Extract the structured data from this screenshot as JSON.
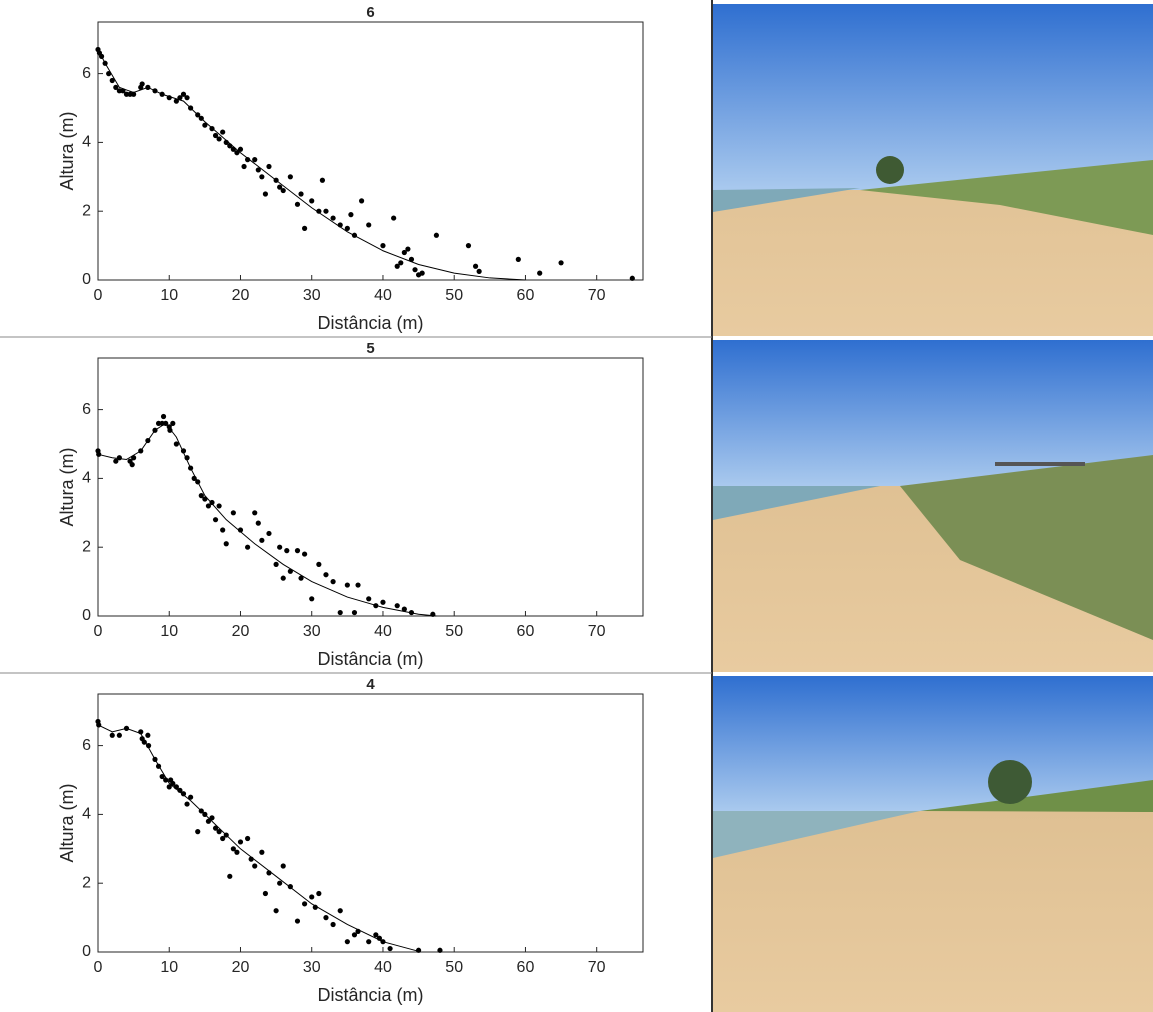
{
  "chart_data": [
    {
      "type": "scatter",
      "title": "6",
      "xlabel": "Distância (m)",
      "ylabel": "Altura (m)",
      "color": "#000000",
      "xlim": [
        0,
        76.5
      ],
      "ylim": [
        0,
        7.5
      ],
      "xticks": [
        0,
        10,
        20,
        30,
        40,
        50,
        60,
        70
      ],
      "yticks": [
        0,
        2,
        4,
        6
      ],
      "points": {
        "x": [
          0,
          0.2,
          0.5,
          1,
          1.5,
          2,
          2.5,
          3,
          3.5,
          4,
          4.5,
          5,
          6,
          6.2,
          7,
          8,
          9,
          10,
          11,
          11.5,
          12,
          12.5,
          13,
          14,
          14.5,
          15,
          16,
          16.5,
          17,
          17.5,
          18,
          18.5,
          19,
          19.5,
          20,
          20.5,
          21,
          22,
          22.5,
          23,
          23.5,
          24,
          25,
          25.5,
          26,
          27,
          28,
          28.5,
          29,
          30,
          31,
          31.5,
          32,
          33,
          34,
          35,
          35.5,
          36,
          37,
          38,
          40,
          41.5,
          42,
          42.5,
          43,
          43.5,
          44,
          44.5,
          45,
          45.5,
          47.5,
          52,
          53,
          53.5,
          59,
          62,
          65,
          75
        ],
        "y": [
          6.7,
          6.6,
          6.5,
          6.3,
          6.0,
          5.8,
          5.6,
          5.5,
          5.5,
          5.4,
          5.4,
          5.4,
          5.6,
          5.7,
          5.6,
          5.5,
          5.4,
          5.3,
          5.2,
          5.3,
          5.4,
          5.3,
          5.0,
          4.8,
          4.7,
          4.5,
          4.4,
          4.2,
          4.1,
          4.3,
          4.0,
          3.9,
          3.8,
          3.7,
          3.8,
          3.3,
          3.5,
          3.5,
          3.2,
          3.0,
          2.5,
          3.3,
          2.9,
          2.7,
          2.6,
          3.0,
          2.2,
          2.5,
          1.5,
          2.3,
          2.0,
          2.9,
          2.0,
          1.8,
          1.6,
          1.5,
          1.9,
          1.3,
          2.3,
          1.6,
          1.0,
          1.8,
          0.4,
          0.5,
          0.8,
          0.9,
          0.6,
          0.3,
          0.15,
          0.2,
          1.3,
          1.0,
          0.4,
          0.25,
          0.6,
          0.2,
          0.5,
          0.05
        ]
      },
      "curve": {
        "x": [
          0,
          1,
          3,
          5,
          7,
          9,
          12,
          15,
          20,
          25,
          30,
          35,
          40,
          45,
          50,
          55,
          60
        ],
        "y": [
          6.7,
          6.3,
          5.6,
          5.45,
          5.6,
          5.4,
          5.2,
          4.6,
          3.7,
          2.9,
          2.1,
          1.4,
          0.85,
          0.45,
          0.2,
          0.06,
          0
        ]
      }
    },
    {
      "type": "scatter",
      "title": "5",
      "xlabel": "Distância (m)",
      "ylabel": "Altura (m)",
      "color": "#000000",
      "xlim": [
        0,
        76.5
      ],
      "ylim": [
        0,
        7.5
      ],
      "xticks": [
        0,
        10,
        20,
        30,
        40,
        50,
        60,
        70
      ],
      "yticks": [
        0,
        2,
        4,
        6
      ],
      "points": {
        "x": [
          0,
          0.1,
          2.5,
          3,
          4.5,
          4.8,
          5,
          6,
          7,
          8,
          8.5,
          9,
          9.2,
          9.5,
          10,
          10.1,
          10.5,
          11,
          12,
          12.5,
          13,
          13.5,
          14,
          14.5,
          15,
          15.5,
          16,
          16.5,
          17,
          17.5,
          18,
          19,
          20,
          21,
          22,
          22.5,
          23,
          24,
          25,
          25.5,
          26,
          26.5,
          27,
          28,
          28.5,
          29,
          30,
          31,
          32,
          33,
          34,
          35,
          36,
          36.5,
          38,
          39,
          40,
          42,
          43,
          44,
          47
        ],
        "y": [
          4.8,
          4.7,
          4.5,
          4.6,
          4.5,
          4.4,
          4.6,
          4.8,
          5.1,
          5.4,
          5.6,
          5.6,
          5.8,
          5.6,
          5.5,
          5.4,
          5.6,
          5.0,
          4.8,
          4.6,
          4.3,
          4.0,
          3.9,
          3.5,
          3.4,
          3.2,
          3.3,
          2.8,
          3.2,
          2.5,
          2.1,
          3.0,
          2.5,
          2.0,
          3.0,
          2.7,
          2.2,
          2.4,
          1.5,
          2.0,
          1.1,
          1.9,
          1.3,
          1.9,
          1.1,
          1.8,
          0.5,
          1.5,
          1.2,
          1.0,
          0.1,
          0.9,
          0.1,
          0.9,
          0.5,
          0.3,
          0.4,
          0.3,
          0.2,
          0.1,
          0.05
        ]
      },
      "curve": {
        "x": [
          0,
          2,
          4,
          6,
          8,
          9.5,
          11,
          13,
          15,
          18,
          22,
          26,
          30,
          35,
          40,
          45,
          47.5
        ],
        "y": [
          4.7,
          4.6,
          4.55,
          4.8,
          5.4,
          5.6,
          5.2,
          4.3,
          3.5,
          2.8,
          2.1,
          1.5,
          1.0,
          0.55,
          0.25,
          0.05,
          0
        ]
      }
    },
    {
      "type": "scatter",
      "title": "4",
      "xlabel": "Distância (m)",
      "ylabel": "Altura (m)",
      "color": "#000000",
      "xlim": [
        0,
        76.5
      ],
      "ylim": [
        0,
        7.5
      ],
      "xticks": [
        0,
        10,
        20,
        30,
        40,
        50,
        60,
        70
      ],
      "yticks": [
        0,
        2,
        4,
        6
      ],
      "points": {
        "x": [
          0,
          0.1,
          2,
          3,
          4,
          6,
          6.2,
          6.5,
          7,
          7.1,
          8,
          8.5,
          9,
          9.5,
          10,
          10.2,
          10.5,
          11,
          11.5,
          12,
          13,
          12.5,
          14,
          14.5,
          15,
          15.5,
          16,
          16.5,
          17,
          17.5,
          18,
          18.5,
          19,
          19.5,
          20,
          21,
          21.5,
          22,
          23,
          23.5,
          24,
          25,
          25.5,
          26,
          27,
          28,
          29,
          30,
          30.5,
          31,
          32,
          33,
          34,
          35,
          36,
          36.5,
          38,
          39,
          39.5,
          40,
          41,
          45,
          48
        ],
        "y": [
          6.7,
          6.6,
          6.3,
          6.3,
          6.5,
          6.4,
          6.2,
          6.1,
          6.3,
          6.0,
          5.6,
          5.4,
          5.1,
          5.0,
          4.8,
          5.0,
          4.9,
          4.8,
          4.7,
          4.6,
          4.5,
          4.3,
          3.5,
          4.1,
          4.0,
          3.8,
          3.9,
          3.6,
          3.5,
          3.3,
          3.4,
          2.2,
          3.0,
          2.9,
          3.2,
          3.3,
          2.7,
          2.5,
          2.9,
          1.7,
          2.3,
          1.2,
          2.0,
          2.5,
          1.9,
          0.9,
          1.4,
          1.6,
          1.3,
          1.7,
          1.0,
          0.8,
          1.2,
          0.3,
          0.5,
          0.6,
          0.3,
          0.5,
          0.4,
          0.3,
          0.1,
          0.05,
          0.05
        ]
      },
      "curve": {
        "x": [
          0,
          2,
          4,
          6,
          8,
          10,
          13,
          16,
          20,
          25,
          30,
          35,
          40,
          45
        ],
        "y": [
          6.6,
          6.4,
          6.5,
          6.35,
          5.6,
          4.9,
          4.4,
          3.8,
          3.0,
          2.2,
          1.4,
          0.8,
          0.3,
          0.02
        ]
      }
    }
  ]
}
